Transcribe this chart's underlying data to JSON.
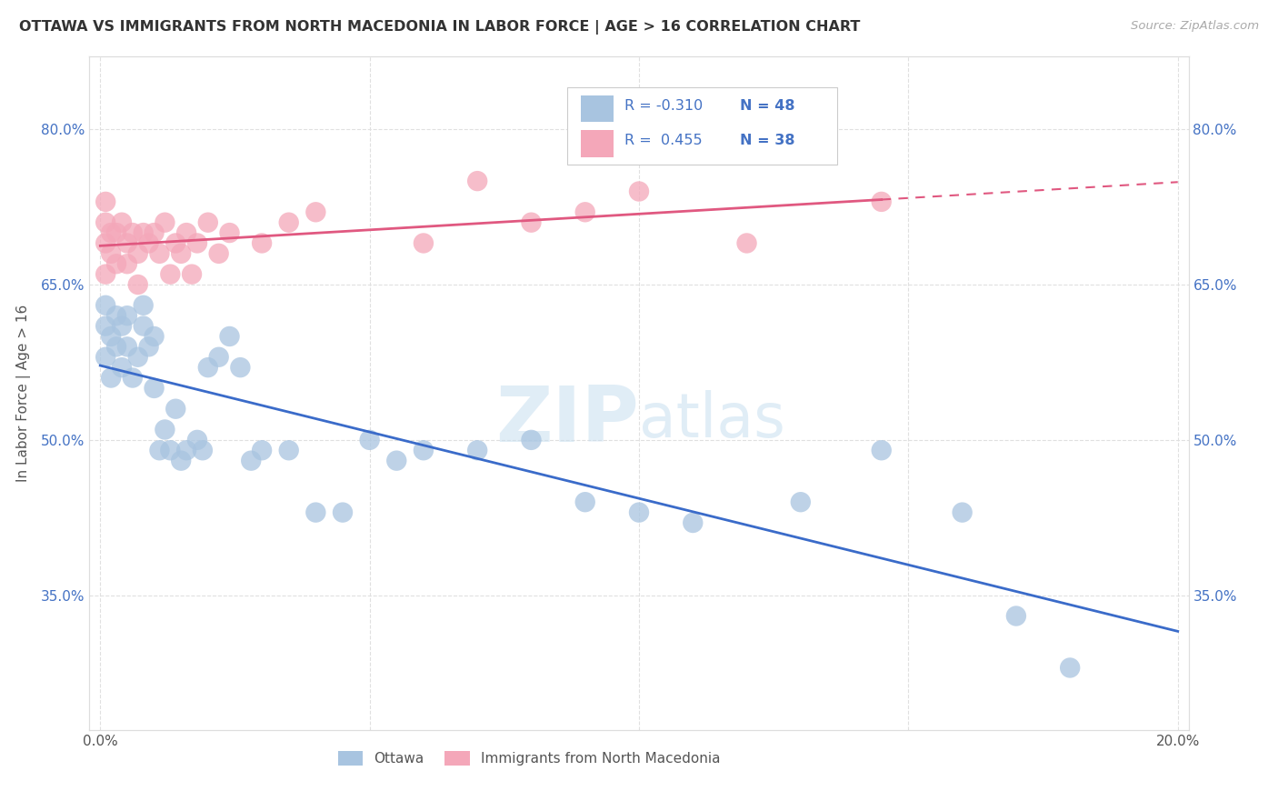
{
  "title": "OTTAWA VS IMMIGRANTS FROM NORTH MACEDONIA IN LABOR FORCE | AGE > 16 CORRELATION CHART",
  "source": "Source: ZipAtlas.com",
  "ylabel": "In Labor Force | Age > 16",
  "xlim": [
    -0.002,
    0.202
  ],
  "ylim": [
    0.22,
    0.87
  ],
  "yticks": [
    0.35,
    0.5,
    0.65,
    0.8
  ],
  "ytick_labels": [
    "35.0%",
    "50.0%",
    "65.0%",
    "80.0%"
  ],
  "xticks": [
    0.0,
    0.05,
    0.1,
    0.15,
    0.2
  ],
  "xtick_labels": [
    "0.0%",
    "",
    "",
    "",
    "20.0%"
  ],
  "r_ottawa": -0.31,
  "n_ottawa": 48,
  "r_immigrants": 0.455,
  "n_immigrants": 38,
  "ottawa_color": "#a8c4e0",
  "immigrants_color": "#f4a7b9",
  "trend_ottawa_color": "#3a6bc9",
  "trend_immigrants_color": "#e05880",
  "watermark_text": "ZIPatlas",
  "background_color": "#ffffff",
  "grid_color": "#e0e0e0",
  "ottawa_x": [
    0.001,
    0.001,
    0.001,
    0.002,
    0.002,
    0.003,
    0.003,
    0.004,
    0.004,
    0.005,
    0.005,
    0.006,
    0.007,
    0.008,
    0.008,
    0.009,
    0.01,
    0.01,
    0.011,
    0.012,
    0.013,
    0.014,
    0.015,
    0.016,
    0.018,
    0.019,
    0.02,
    0.022,
    0.024,
    0.026,
    0.028,
    0.03,
    0.035,
    0.04,
    0.045,
    0.05,
    0.055,
    0.06,
    0.07,
    0.08,
    0.09,
    0.1,
    0.11,
    0.13,
    0.145,
    0.16,
    0.17,
    0.18
  ],
  "ottawa_y": [
    0.63,
    0.61,
    0.58,
    0.6,
    0.56,
    0.62,
    0.59,
    0.61,
    0.57,
    0.59,
    0.62,
    0.56,
    0.58,
    0.61,
    0.63,
    0.59,
    0.6,
    0.55,
    0.49,
    0.51,
    0.49,
    0.53,
    0.48,
    0.49,
    0.5,
    0.49,
    0.57,
    0.58,
    0.6,
    0.57,
    0.48,
    0.49,
    0.49,
    0.43,
    0.43,
    0.5,
    0.48,
    0.49,
    0.49,
    0.5,
    0.44,
    0.43,
    0.42,
    0.44,
    0.49,
    0.43,
    0.33,
    0.28
  ],
  "immigrants_x": [
    0.001,
    0.001,
    0.001,
    0.001,
    0.002,
    0.002,
    0.003,
    0.003,
    0.004,
    0.005,
    0.005,
    0.006,
    0.007,
    0.007,
    0.008,
    0.009,
    0.01,
    0.011,
    0.012,
    0.013,
    0.014,
    0.015,
    0.016,
    0.017,
    0.018,
    0.02,
    0.022,
    0.024,
    0.03,
    0.035,
    0.04,
    0.06,
    0.07,
    0.08,
    0.09,
    0.1,
    0.12,
    0.145
  ],
  "immigrants_y": [
    0.71,
    0.73,
    0.69,
    0.66,
    0.7,
    0.68,
    0.7,
    0.67,
    0.71,
    0.69,
    0.67,
    0.7,
    0.68,
    0.65,
    0.7,
    0.69,
    0.7,
    0.68,
    0.71,
    0.66,
    0.69,
    0.68,
    0.7,
    0.66,
    0.69,
    0.71,
    0.68,
    0.7,
    0.69,
    0.71,
    0.72,
    0.69,
    0.75,
    0.71,
    0.72,
    0.74,
    0.69,
    0.73
  ]
}
